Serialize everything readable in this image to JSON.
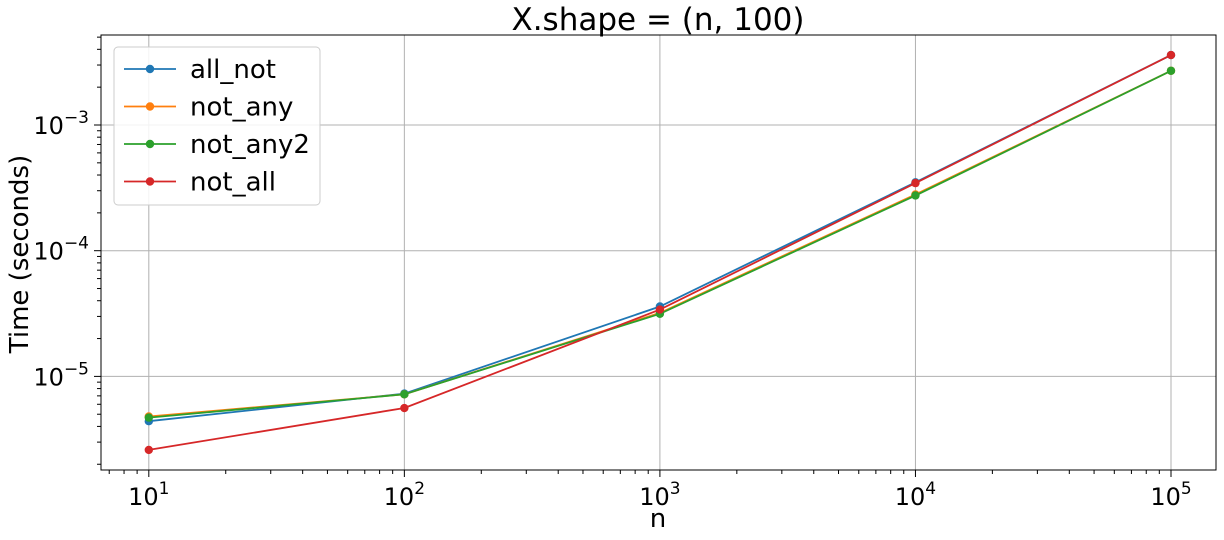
{
  "chart_data": {
    "type": "line",
    "title": "X.shape = (n, 100)",
    "xlabel": "n",
    "ylabel": "Time (seconds)",
    "xscale": "log",
    "yscale": "log",
    "xlim": [
      6.5,
      150000
    ],
    "ylim": [
      1.8e-06,
      0.0052
    ],
    "grid": true,
    "legend_position": "top-left",
    "x": [
      10,
      100,
      1000,
      10000,
      100000
    ],
    "x_tick_labels": [
      {
        "base": "10",
        "exp": "1"
      },
      {
        "base": "10",
        "exp": "2"
      },
      {
        "base": "10",
        "exp": "3"
      },
      {
        "base": "10",
        "exp": "4"
      },
      {
        "base": "10",
        "exp": "5"
      }
    ],
    "y_tick_labels": [
      {
        "value": 1e-05,
        "base": "10",
        "exp": "−5"
      },
      {
        "value": 0.0001,
        "base": "10",
        "exp": "−4"
      },
      {
        "value": 0.001,
        "base": "10",
        "exp": "−3"
      }
    ],
    "series": [
      {
        "name": "all_not",
        "color": "#1f77b4",
        "values": [
          4.4e-06,
          7.3e-06,
          3.6e-05,
          0.00035,
          0.0036
        ]
      },
      {
        "name": "not_any",
        "color": "#ff7f0e",
        "values": [
          4.8e-06,
          7.2e-06,
          3.2e-05,
          0.00028,
          0.0027
        ]
      },
      {
        "name": "not_any2",
        "color": "#2ca02c",
        "values": [
          4.7e-06,
          7.2e-06,
          3.15e-05,
          0.000275,
          0.0027
        ]
      },
      {
        "name": "not_all",
        "color": "#d62728",
        "values": [
          2.6e-06,
          5.6e-06,
          3.4e-05,
          0.000345,
          0.0036
        ]
      }
    ]
  }
}
